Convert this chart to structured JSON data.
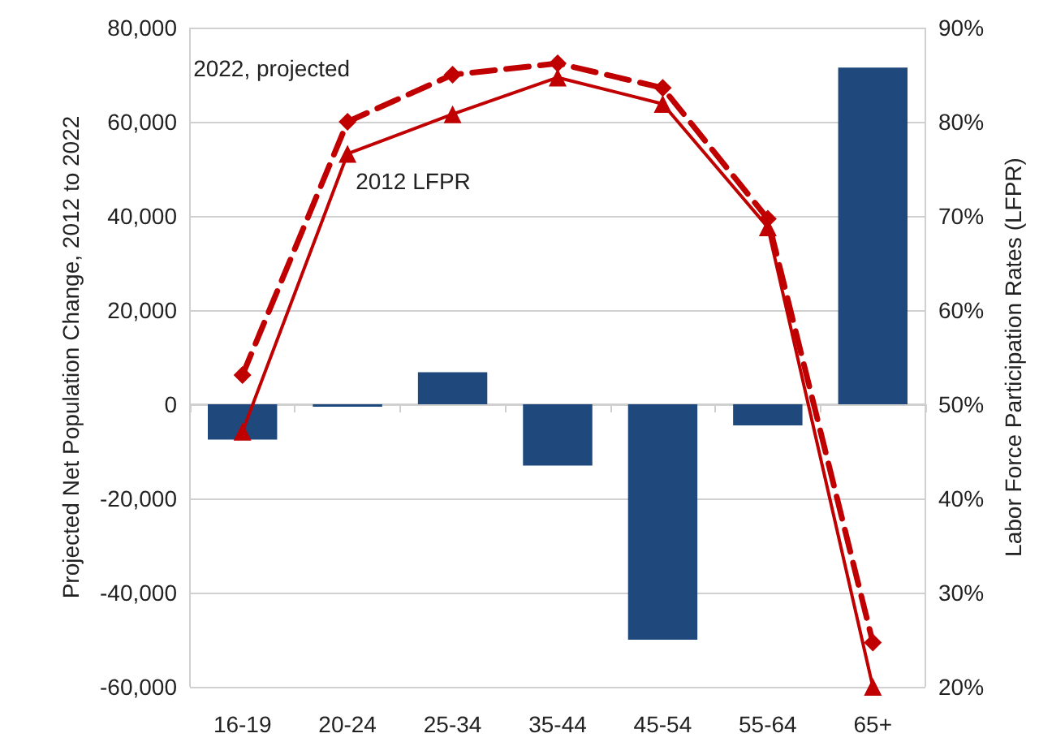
{
  "chart_data": {
    "type": "bar",
    "ylabel": "Projected Net Population Change, 2012 to 2022",
    "y2label": "Labor Force Participation Rates (LFPR)",
    "categories": [
      "16-19",
      "20-24",
      "25-34",
      "35-44",
      "45-54",
      "55-64",
      "65+"
    ],
    "series": [
      {
        "color": "#1f497d",
        "values": [
          -7500,
          -500,
          6800,
          -13000,
          -50000,
          -4500,
          71500
        ]
      },
      {
        "type": "line",
        "name": "2022, projected",
        "axis": "y2",
        "color": "#c00000",
        "marker": "diamond",
        "line_style": "dashed",
        "values": [
          53.1,
          80.0,
          85.0,
          86.2,
          83.6,
          69.7,
          24.7
        ]
      },
      {
        "type": "line",
        "name": "2012 LFPR",
        "axis": "y2",
        "color": "#c00000",
        "marker": "triangle",
        "line_style": "solid",
        "values": [
          47.1,
          76.6,
          80.8,
          84.7,
          81.9,
          68.8,
          20.0
        ]
      }
    ],
    "ylim": [
      -60000,
      80000
    ],
    "yticks": [
      {
        "value": -60000,
        "label": "-60,000"
      },
      {
        "value": -40000,
        "label": "-40,000"
      },
      {
        "value": -20000,
        "label": "-20,000"
      },
      0,
      {
        "value": 20000,
        "label": "20,000"
      },
      {
        "value": 40000,
        "label": "40,000"
      },
      {
        "value": 60000,
        "label": "60,000"
      },
      {
        "value": 80000,
        "label": "80,000"
      }
    ],
    "y2lim": [
      20,
      90
    ],
    "y2ticks": [
      {
        "value": 20,
        "label": "20%"
      },
      {
        "value": 30,
        "label": "30%"
      },
      {
        "value": 40,
        "label": "40%"
      },
      {
        "value": 50,
        "label": "50%"
      },
      {
        "value": 60,
        "label": "60%"
      },
      {
        "value": 70,
        "label": "70%"
      },
      {
        "value": 80,
        "label": "80%"
      },
      {
        "value": 90,
        "label": "90%"
      }
    ],
    "grid": "y",
    "legend": false
  }
}
